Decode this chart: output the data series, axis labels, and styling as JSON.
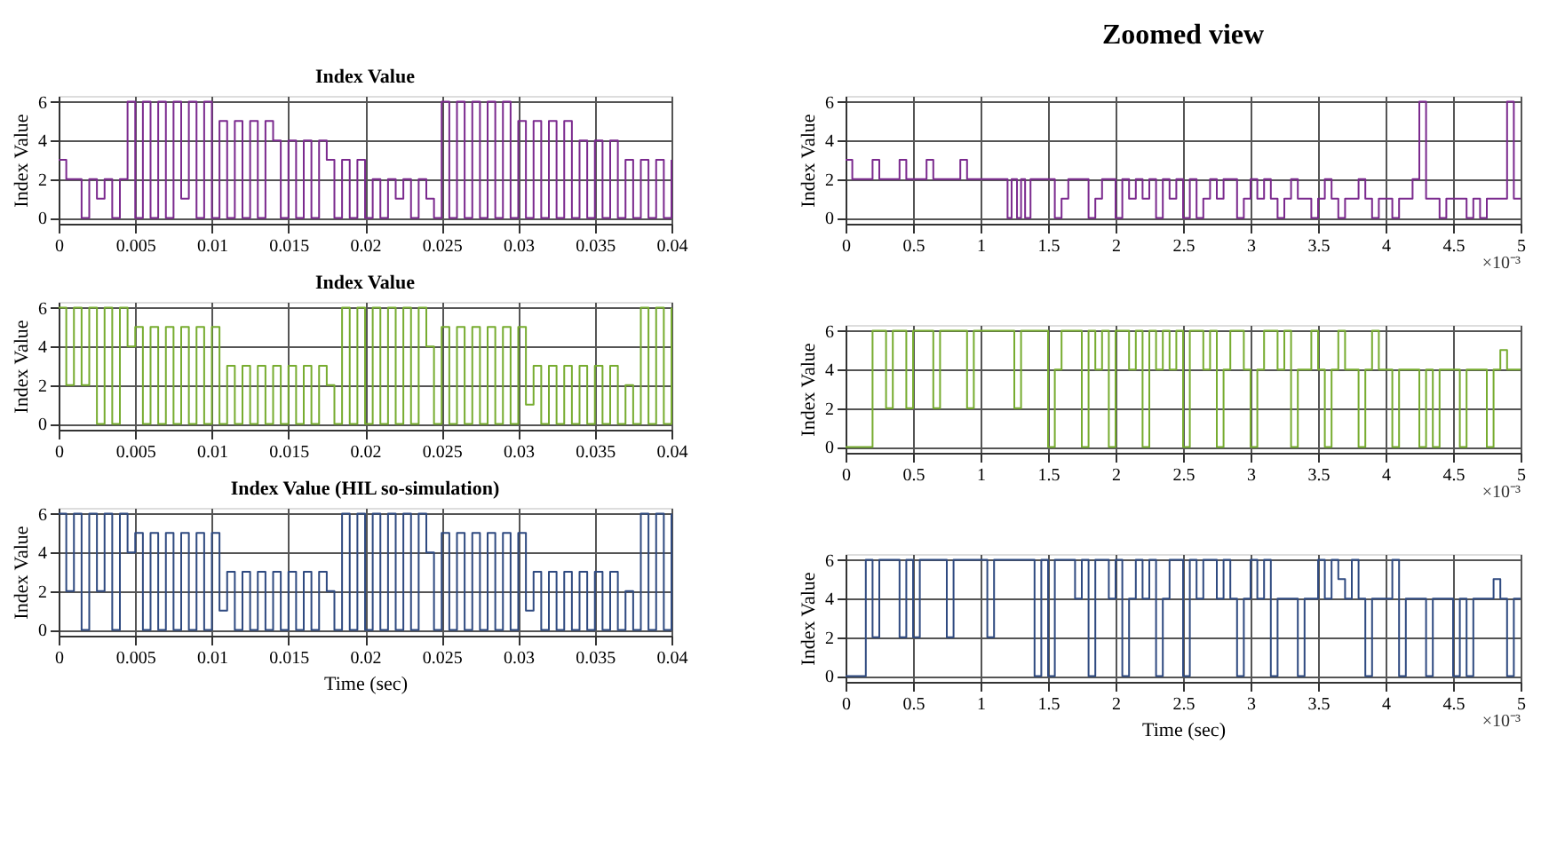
{
  "chart_data": [
    {
      "type": "step",
      "title": "Index Value",
      "ylabel": "Index Value",
      "xlim": [
        0,
        0.04
      ],
      "xticks": [
        0,
        0.005,
        0.01,
        0.015,
        0.02,
        0.025,
        0.03,
        0.035,
        0.04
      ],
      "ylim": [
        -0.3,
        6.3
      ],
      "yticks": [
        0,
        2,
        4,
        6
      ],
      "grid": true,
      "x": [
        0,
        0.0005,
        0.001,
        0.0015,
        0.002,
        0.0025,
        0.003,
        0.0035,
        0.004,
        0.0045,
        0.005,
        0.0055,
        0.006,
        0.0065,
        0.007,
        0.0075,
        0.008,
        0.0085,
        0.009,
        0.0095,
        0.01,
        0.0105,
        0.011,
        0.0115,
        0.012,
        0.0125,
        0.013,
        0.0135,
        0.014,
        0.0145,
        0.015,
        0.0155,
        0.016,
        0.0165,
        0.017,
        0.0175,
        0.018,
        0.0185,
        0.019,
        0.0195,
        0.02,
        0.0205,
        0.021,
        0.0215,
        0.022,
        0.0225,
        0.023,
        0.0235,
        0.024,
        0.0245,
        0.025,
        0.0255,
        0.026,
        0.0265,
        0.027,
        0.0275,
        0.028,
        0.0285,
        0.029,
        0.0295,
        0.03,
        0.0305,
        0.031,
        0.0315,
        0.032,
        0.0325,
        0.033,
        0.0335,
        0.034,
        0.0345,
        0.035,
        0.0355,
        0.036,
        0.0365,
        0.037,
        0.0375,
        0.038,
        0.0385,
        0.039,
        0.0395,
        0.04
      ],
      "series": [
        {
          "color": "#7b2a8e",
          "values": [
            3,
            2,
            2,
            0,
            2,
            1,
            2,
            0,
            2,
            6,
            0,
            6,
            0,
            6,
            0,
            6,
            1,
            6,
            0,
            6,
            0,
            5,
            0,
            5,
            0,
            5,
            0,
            5,
            4,
            0,
            4,
            0,
            4,
            0,
            4,
            3,
            0,
            3,
            0,
            3,
            0,
            2,
            0,
            2,
            1,
            2,
            0,
            2,
            1,
            0,
            6,
            0,
            6,
            0,
            6,
            0,
            6,
            0,
            6,
            0,
            5,
            0,
            5,
            0,
            5,
            0,
            5,
            0,
            4,
            0,
            4,
            0,
            4,
            0,
            3,
            0,
            3,
            0,
            3,
            0,
            3
          ]
        }
      ]
    },
    {
      "type": "step",
      "title": "Index Value",
      "ylabel": "Index Value",
      "xlim": [
        0,
        0.04
      ],
      "xticks": [
        0,
        0.005,
        0.01,
        0.015,
        0.02,
        0.025,
        0.03,
        0.035,
        0.04
      ],
      "ylim": [
        -0.3,
        6.3
      ],
      "yticks": [
        0,
        2,
        4,
        6
      ],
      "grid": true,
      "x": [
        0,
        0.0005,
        0.001,
        0.0015,
        0.002,
        0.0025,
        0.003,
        0.0035,
        0.004,
        0.0045,
        0.005,
        0.0055,
        0.006,
        0.0065,
        0.007,
        0.0075,
        0.008,
        0.0085,
        0.009,
        0.0095,
        0.01,
        0.0105,
        0.011,
        0.0115,
        0.012,
        0.0125,
        0.013,
        0.0135,
        0.014,
        0.0145,
        0.015,
        0.0155,
        0.016,
        0.0165,
        0.017,
        0.0175,
        0.018,
        0.0185,
        0.019,
        0.0195,
        0.02,
        0.0205,
        0.021,
        0.0215,
        0.022,
        0.0225,
        0.023,
        0.0235,
        0.024,
        0.0245,
        0.025,
        0.0255,
        0.026,
        0.0265,
        0.027,
        0.0275,
        0.028,
        0.0285,
        0.029,
        0.0295,
        0.03,
        0.0305,
        0.031,
        0.0315,
        0.032,
        0.0325,
        0.033,
        0.0335,
        0.034,
        0.0345,
        0.035,
        0.0355,
        0.036,
        0.0365,
        0.037,
        0.0375,
        0.038,
        0.0385,
        0.039,
        0.0395,
        0.04
      ],
      "series": [
        {
          "color": "#77ac30",
          "values": [
            6,
            2,
            6,
            2,
            6,
            0,
            6,
            0,
            6,
            4,
            5,
            0,
            5,
            0,
            5,
            0,
            5,
            0,
            5,
            0,
            5,
            0,
            3,
            0,
            3,
            0,
            3,
            0,
            3,
            0,
            3,
            0,
            3,
            0,
            3,
            2,
            0,
            6,
            0,
            6,
            0,
            6,
            0,
            6,
            0,
            6,
            0,
            6,
            4,
            0,
            5,
            0,
            5,
            0,
            5,
            0,
            5,
            0,
            5,
            0,
            5,
            1,
            3,
            0,
            3,
            0,
            3,
            0,
            3,
            0,
            3,
            0,
            3,
            0,
            2,
            0,
            6,
            0,
            6,
            0,
            6
          ]
        }
      ]
    },
    {
      "type": "step",
      "title": "Index Value (HIL so-simulation)",
      "ylabel": "Index Value",
      "xlabel": "Time (sec)",
      "xlim": [
        0,
        0.04
      ],
      "xticks": [
        0,
        0.005,
        0.01,
        0.015,
        0.02,
        0.025,
        0.03,
        0.035,
        0.04
      ],
      "ylim": [
        -0.3,
        6.3
      ],
      "yticks": [
        0,
        2,
        4,
        6
      ],
      "grid": true,
      "x": [
        0,
        0.0005,
        0.001,
        0.0015,
        0.002,
        0.0025,
        0.003,
        0.0035,
        0.004,
        0.0045,
        0.005,
        0.0055,
        0.006,
        0.0065,
        0.007,
        0.0075,
        0.008,
        0.0085,
        0.009,
        0.0095,
        0.01,
        0.0105,
        0.011,
        0.0115,
        0.012,
        0.0125,
        0.013,
        0.0135,
        0.014,
        0.0145,
        0.015,
        0.0155,
        0.016,
        0.0165,
        0.017,
        0.0175,
        0.018,
        0.0185,
        0.019,
        0.0195,
        0.02,
        0.0205,
        0.021,
        0.0215,
        0.022,
        0.0225,
        0.023,
        0.0235,
        0.024,
        0.0245,
        0.025,
        0.0255,
        0.026,
        0.0265,
        0.027,
        0.0275,
        0.028,
        0.0285,
        0.029,
        0.0295,
        0.03,
        0.0305,
        0.031,
        0.0315,
        0.032,
        0.0325,
        0.033,
        0.0335,
        0.034,
        0.0345,
        0.035,
        0.0355,
        0.036,
        0.0365,
        0.037,
        0.0375,
        0.038,
        0.0385,
        0.039,
        0.0395,
        0.04
      ],
      "series": [
        {
          "color": "#2f4a80",
          "values": [
            6,
            2,
            6,
            0,
            6,
            2,
            6,
            0,
            6,
            4,
            5,
            0,
            5,
            0,
            5,
            0,
            5,
            0,
            5,
            0,
            5,
            1,
            3,
            0,
            3,
            0,
            3,
            0,
            3,
            0,
            3,
            0,
            3,
            0,
            3,
            2,
            0,
            6,
            0,
            6,
            0,
            6,
            0,
            6,
            0,
            6,
            0,
            6,
            4,
            0,
            5,
            0,
            5,
            0,
            5,
            0,
            5,
            0,
            5,
            0,
            5,
            1,
            3,
            0,
            3,
            0,
            3,
            0,
            3,
            0,
            3,
            0,
            3,
            0,
            2,
            0,
            6,
            0,
            6,
            0,
            6
          ]
        }
      ]
    },
    {
      "type": "step",
      "title": "Zoomed view",
      "ylabel": "Index Value",
      "xlim": [
        0,
        5
      ],
      "xticks": [
        0,
        0.5,
        1,
        1.5,
        2,
        2.5,
        3,
        3.5,
        4,
        4.5,
        5
      ],
      "ylim": [
        -0.3,
        6.3
      ],
      "yticks": [
        0,
        2,
        4,
        6
      ],
      "grid": true,
      "annotations": [
        "×10⁻³"
      ],
      "x": [
        0,
        0.05,
        0.2,
        0.25,
        0.4,
        0.45,
        0.6,
        0.65,
        0.85,
        0.9,
        1.2,
        1.23,
        1.27,
        1.3,
        1.33,
        1.37,
        1.55,
        1.6,
        1.65,
        1.8,
        1.85,
        1.9,
        2.0,
        2.05,
        2.1,
        2.15,
        2.2,
        2.25,
        2.3,
        2.35,
        2.4,
        2.45,
        2.5,
        2.55,
        2.6,
        2.65,
        2.7,
        2.75,
        2.8,
        2.9,
        2.95,
        3.0,
        3.05,
        3.1,
        3.15,
        3.2,
        3.25,
        3.3,
        3.35,
        3.45,
        3.5,
        3.55,
        3.6,
        3.65,
        3.7,
        3.8,
        3.85,
        3.9,
        3.95,
        4.05,
        4.1,
        4.2,
        4.25,
        4.3,
        4.4,
        4.45,
        4.6,
        4.65,
        4.7,
        4.75,
        4.9,
        4.95,
        5
      ],
      "series": [
        {
          "color": "#7b2a8e",
          "values": [
            3,
            2,
            3,
            2,
            3,
            2,
            3,
            2,
            3,
            2,
            0,
            2,
            0,
            2,
            0,
            2,
            0,
            1,
            2,
            0,
            1,
            2,
            0,
            2,
            1,
            2,
            1,
            2,
            0,
            2,
            1,
            2,
            0,
            2,
            0,
            1,
            2,
            1,
            2,
            0,
            1,
            2,
            1,
            2,
            1,
            0,
            1,
            2,
            1,
            0,
            1,
            2,
            1,
            0,
            1,
            2,
            1,
            0,
            1,
            0,
            1,
            2,
            6,
            1,
            0,
            1,
            0,
            1,
            0,
            1,
            6,
            1,
            1
          ]
        }
      ]
    },
    {
      "type": "step",
      "ylabel": "Index Value",
      "xlim": [
        0,
        5
      ],
      "xticks": [
        0,
        0.5,
        1,
        1.5,
        2,
        2.5,
        3,
        3.5,
        4,
        4.5,
        5
      ],
      "ylim": [
        -0.3,
        6.3
      ],
      "yticks": [
        0,
        2,
        4,
        6
      ],
      "grid": true,
      "annotations": [
        "×10⁻³"
      ],
      "x": [
        0,
        0.2,
        0.3,
        0.35,
        0.45,
        0.5,
        0.65,
        0.7,
        0.9,
        0.95,
        1.25,
        1.3,
        1.5,
        1.55,
        1.6,
        1.75,
        1.8,
        1.85,
        1.9,
        1.95,
        2.0,
        2.1,
        2.15,
        2.2,
        2.25,
        2.3,
        2.35,
        2.4,
        2.45,
        2.5,
        2.55,
        2.65,
        2.7,
        2.75,
        2.8,
        2.85,
        2.95,
        3.0,
        3.05,
        3.1,
        3.2,
        3.25,
        3.3,
        3.35,
        3.45,
        3.5,
        3.55,
        3.6,
        3.65,
        3.7,
        3.8,
        3.85,
        3.9,
        3.95,
        4.05,
        4.1,
        4.25,
        4.3,
        4.35,
        4.4,
        4.55,
        4.6,
        4.75,
        4.8,
        4.85,
        4.9,
        5
      ],
      "series": [
        {
          "color": "#77ac30",
          "values": [
            0,
            6,
            2,
            6,
            2,
            6,
            2,
            6,
            2,
            6,
            2,
            6,
            0,
            4,
            6,
            0,
            6,
            4,
            6,
            0,
            6,
            4,
            6,
            0,
            6,
            4,
            6,
            4,
            6,
            0,
            6,
            4,
            6,
            0,
            4,
            6,
            4,
            0,
            4,
            6,
            4,
            6,
            0,
            4,
            6,
            4,
            0,
            4,
            6,
            4,
            0,
            4,
            6,
            4,
            0,
            4,
            0,
            4,
            0,
            4,
            0,
            4,
            0,
            4,
            5,
            4,
            4
          ]
        }
      ]
    },
    {
      "type": "step",
      "ylabel": "Index Value",
      "xlabel": "Time (sec)",
      "xlim": [
        0,
        5
      ],
      "xticks": [
        0,
        0.5,
        1,
        1.5,
        2,
        2.5,
        3,
        3.5,
        4,
        4.5,
        5
      ],
      "ylim": [
        -0.3,
        6.3
      ],
      "yticks": [
        0,
        2,
        4,
        6
      ],
      "grid": true,
      "annotations": [
        "×10⁻³"
      ],
      "x": [
        0,
        0.15,
        0.2,
        0.25,
        0.4,
        0.45,
        0.5,
        0.55,
        0.75,
        0.8,
        1.05,
        1.1,
        1.4,
        1.45,
        1.5,
        1.55,
        1.7,
        1.75,
        1.8,
        1.85,
        1.95,
        2.0,
        2.05,
        2.1,
        2.15,
        2.2,
        2.25,
        2.3,
        2.35,
        2.4,
        2.5,
        2.55,
        2.6,
        2.65,
        2.75,
        2.8,
        2.85,
        2.9,
        2.95,
        3.0,
        3.05,
        3.1,
        3.15,
        3.2,
        3.35,
        3.4,
        3.5,
        3.55,
        3.6,
        3.65,
        3.7,
        3.75,
        3.8,
        3.85,
        3.9,
        4.05,
        4.1,
        4.15,
        4.3,
        4.35,
        4.5,
        4.55,
        4.6,
        4.65,
        4.8,
        4.85,
        4.9,
        4.95,
        5
      ],
      "series": [
        {
          "color": "#2f4a80",
          "values": [
            0,
            6,
            2,
            6,
            2,
            6,
            2,
            6,
            2,
            6,
            2,
            6,
            0,
            6,
            0,
            6,
            4,
            6,
            0,
            6,
            4,
            6,
            0,
            4,
            6,
            4,
            6,
            0,
            4,
            6,
            0,
            6,
            4,
            6,
            4,
            6,
            4,
            0,
            4,
            6,
            4,
            6,
            0,
            4,
            0,
            4,
            6,
            4,
            6,
            5,
            4,
            6,
            4,
            0,
            4,
            6,
            0,
            4,
            0,
            4,
            0,
            4,
            0,
            4,
            5,
            4,
            0,
            4,
            4
          ]
        }
      ]
    }
  ]
}
